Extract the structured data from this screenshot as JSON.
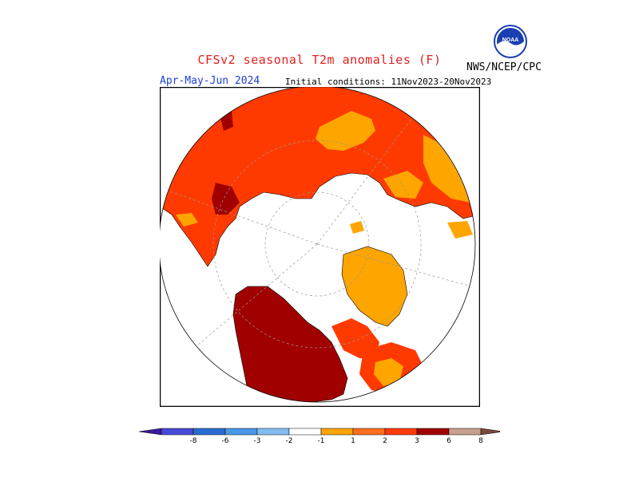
{
  "title": "CFSv2 seasonal T2m anomalies (F)",
  "agency": "NWS/NCEP/CPC",
  "logo_text": "NOAA",
  "season": "Apr-May-Jun 2024",
  "initial_conditions": "Initial conditions: 11Nov2023-20Nov2023",
  "colorbar": {
    "colors": [
      "#3a1aa0",
      "#4a4ad8",
      "#2a6cd0",
      "#4a98e8",
      "#82bcf0",
      "#ffffff",
      "#ffa500",
      "#ff6e1e",
      "#ff3a00",
      "#a00000",
      "#c8a090",
      "#7a4a3a"
    ],
    "labels": [
      "-8",
      "-6",
      "-3",
      "-2",
      "-1",
      "1",
      "2",
      "3",
      "6",
      "8"
    ]
  },
  "map_colors": {
    "land_background": "#ff3a00",
    "anomaly_1_2": "#ffa500",
    "anomaly_3_6": "#a00000",
    "neutral": "#ffffff"
  }
}
